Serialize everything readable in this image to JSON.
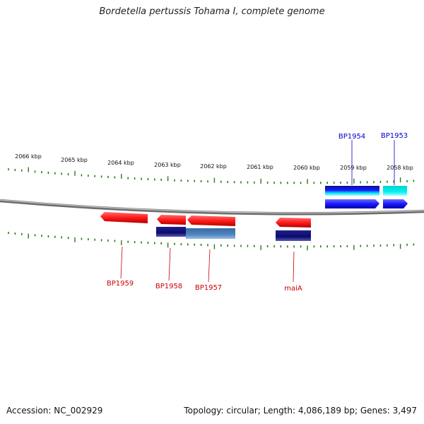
{
  "title": "Bordetella pertussis Tohama I, complete genome",
  "footer": {
    "accession": "Accession: NC_002929",
    "summary": "Topology: circular; Length: 4,086,189 bp; Genes: 3,497"
  },
  "colors": {
    "forward_label": "#0000cc",
    "reverse_label": "#cc0000",
    "tick": "#2a7a1a",
    "backbone": "#888888"
  },
  "ruler": [
    {
      "label": "2066 kbp"
    },
    {
      "label": "2065 kbp"
    },
    {
      "label": "2064 kbp"
    },
    {
      "label": "2063 kbp"
    },
    {
      "label": "2062 kbp"
    },
    {
      "label": "2061 kbp"
    },
    {
      "label": "2060 kbp"
    },
    {
      "label": "2059 kbp"
    },
    {
      "label": "2058 kbp"
    }
  ],
  "features": [
    {
      "name": "BP1954",
      "strand": "forward",
      "color": "#1a1aff",
      "sub_color": "#0d0d99"
    },
    {
      "name": "BP1953",
      "strand": "forward",
      "color": "#1a1aff",
      "sub_color": "#00e5e5"
    },
    {
      "name": "BP1959",
      "strand": "reverse",
      "color": "#ff1a1a"
    },
    {
      "name": "BP1958",
      "strand": "reverse",
      "color": "#ff1a1a",
      "sub_color": "#0b0b6e"
    },
    {
      "name": "BP1957",
      "strand": "reverse",
      "color": "#ff1a1a",
      "sub_color": "#4f86c0"
    },
    {
      "name": "maiA",
      "strand": "reverse",
      "color": "#ff1a1a",
      "sub_color": "#0b0b6e"
    }
  ]
}
